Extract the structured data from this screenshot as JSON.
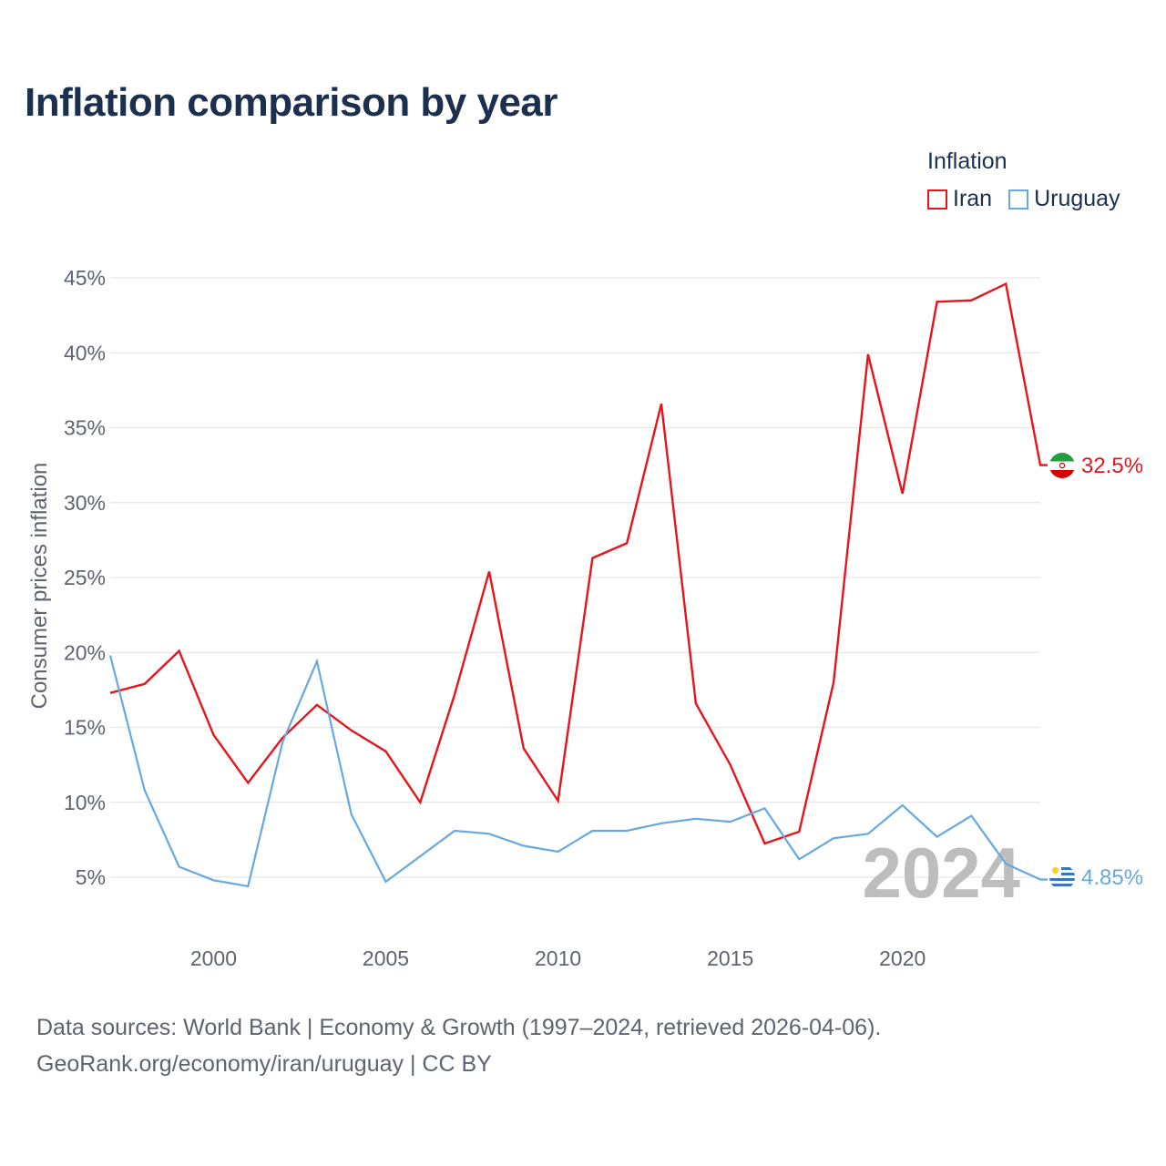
{
  "title": "Inflation comparison by year",
  "legend": {
    "title": "Inflation",
    "items": [
      {
        "label": "Iran",
        "color": "#e8141b"
      },
      {
        "label": "Uruguay",
        "color": "#66a9e0"
      }
    ]
  },
  "source": {
    "line1": "Data sources: World Bank | Economy & Growth (1997–2024, retrieved 2026-04-06).",
    "line2": "GeoRank.org/economy/iran/uruguay | CC BY"
  },
  "chart_data": {
    "type": "line",
    "title": "Inflation comparison by year",
    "xlabel": "",
    "ylabel": "Consumer prices inflation",
    "current_year_label": "2024",
    "x": [
      1997,
      1998,
      1999,
      2000,
      2001,
      2002,
      2003,
      2004,
      2005,
      2006,
      2007,
      2008,
      2009,
      2010,
      2011,
      2012,
      2013,
      2014,
      2015,
      2016,
      2017,
      2018,
      2019,
      2020,
      2021,
      2022,
      2023,
      2024
    ],
    "xlim": [
      1997,
      2024
    ],
    "ylim": [
      1.5,
      47
    ],
    "x_ticks": [
      2000,
      2005,
      2010,
      2015,
      2020
    ],
    "y_ticks": [
      5,
      10,
      15,
      20,
      25,
      30,
      35,
      40,
      45
    ],
    "y_tick_labels": [
      "5%",
      "10%",
      "15%",
      "20%",
      "25%",
      "30%",
      "35%",
      "40%",
      "45%"
    ],
    "series": [
      {
        "name": "Iran",
        "color": "#e8141b",
        "end_label": "32.5%",
        "values": [
          17.3,
          17.9,
          20.1,
          14.5,
          11.3,
          14.3,
          16.5,
          14.8,
          13.4,
          10.0,
          17.2,
          25.4,
          13.6,
          10.1,
          26.3,
          27.3,
          36.6,
          16.6,
          12.5,
          7.25,
          8.04,
          18.0,
          39.9,
          30.6,
          43.4,
          43.5,
          44.6,
          32.5
        ]
      },
      {
        "name": "Uruguay",
        "color": "#66a9e0",
        "end_label": "4.85%",
        "values": [
          19.8,
          10.8,
          5.7,
          4.8,
          4.4,
          14.0,
          19.4,
          9.2,
          4.7,
          6.4,
          8.1,
          7.9,
          7.1,
          6.7,
          8.1,
          8.1,
          8.6,
          8.9,
          8.7,
          9.6,
          6.2,
          7.6,
          7.9,
          9.8,
          7.7,
          9.1,
          5.9,
          4.85
        ]
      }
    ]
  }
}
